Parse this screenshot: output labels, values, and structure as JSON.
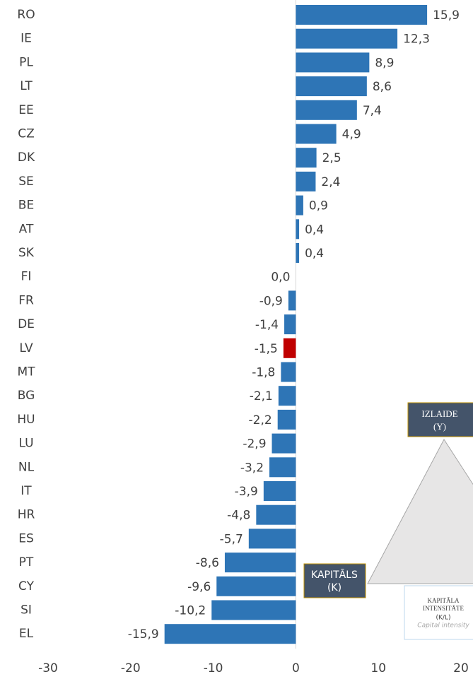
{
  "chart_data": {
    "type": "barh",
    "categories": [
      "RO",
      "IE",
      "PL",
      "LT",
      "EE",
      "CZ",
      "DK",
      "SE",
      "BE",
      "AT",
      "SK",
      "FI",
      "FR",
      "DE",
      "LV",
      "MT",
      "BG",
      "HU",
      "LU",
      "NL",
      "IT",
      "HR",
      "ES",
      "PT",
      "CY",
      "SI",
      "EL"
    ],
    "values": [
      15.9,
      12.3,
      8.9,
      8.6,
      7.4,
      4.9,
      2.5,
      2.4,
      0.9,
      0.4,
      0.4,
      0.0,
      -0.9,
      -1.4,
      -1.5,
      -1.8,
      -2.1,
      -2.2,
      -2.9,
      -3.2,
      -3.9,
      -4.8,
      -5.7,
      -8.6,
      -9.6,
      -10.2,
      -15.9
    ],
    "value_labels": [
      "15,9",
      "12,3",
      "8,9",
      "8,6",
      "7,4",
      "4,9",
      "2,5",
      "2,4",
      "0,9",
      "0,4",
      "0,4",
      "0,0",
      "-0,9",
      "-1,4",
      "-1,5",
      "-1,8",
      "-2,1",
      "-2,2",
      "-2,9",
      "-3,2",
      "-3,9",
      "-4,8",
      "-5,7",
      "-8,6",
      "-9,6",
      "-10,2",
      "-15,9"
    ],
    "colors": [
      "#2e75b6",
      "#2e75b6",
      "#2e75b6",
      "#2e75b6",
      "#2e75b6",
      "#2e75b6",
      "#2e75b6",
      "#2e75b6",
      "#2e75b6",
      "#2e75b6",
      "#2e75b6",
      "#2e75b6",
      "#2e75b6",
      "#2e75b6",
      "#c00000",
      "#2e75b6",
      "#2e75b6",
      "#2e75b6",
      "#2e75b6",
      "#2e75b6",
      "#2e75b6",
      "#2e75b6",
      "#2e75b6",
      "#2e75b6",
      "#2e75b6",
      "#2e75b6",
      "#2e75b6"
    ],
    "xlim": [
      -30,
      20
    ],
    "xticks": [
      -30,
      -20,
      -10,
      0,
      10,
      20
    ]
  },
  "diagram": {
    "top": {
      "title": "IZLAIDE",
      "sub": "(Y)"
    },
    "left": {
      "title": "KAPITĀLS",
      "sub": "(K)"
    },
    "right": {
      "title1": "KAPITĀLA",
      "title2": "INTENSITĀTE",
      "sub": "(K/L)",
      "note": "Capital intensity"
    }
  }
}
